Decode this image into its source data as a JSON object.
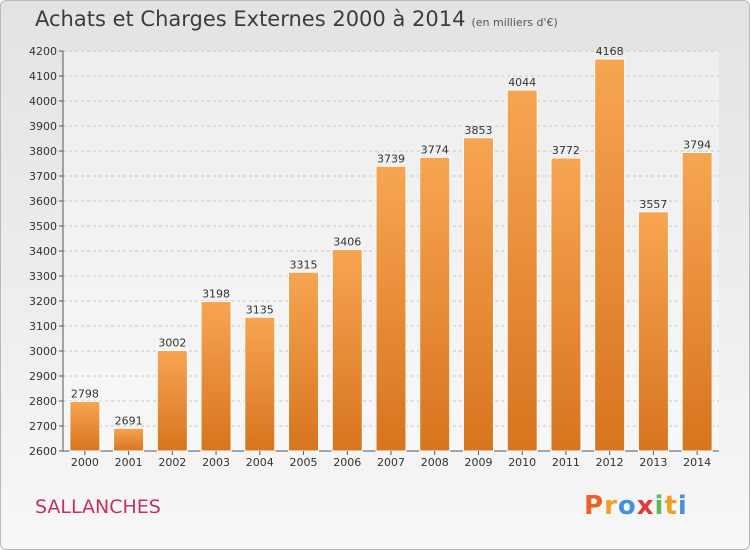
{
  "header": {
    "title": "Achats et Charges Externes 2000 à 2014",
    "subtitle": "(en milliers d'€)"
  },
  "footer": {
    "commune": "SALLANCHES",
    "logo": [
      "P",
      "r",
      "o",
      "x",
      "i",
      "t",
      "i"
    ]
  },
  "colors": {
    "bar_top": "#f7a552",
    "bar_bottom": "#d8741e",
    "grid": "#c8c8c8",
    "commune": "#c8305c",
    "logo": [
      "#e8622a",
      "#f0a024",
      "#4a90d9",
      "#e03a3a",
      "#5cb85c",
      "#f0a024",
      "#4a90d9"
    ]
  },
  "chart_data": {
    "type": "bar",
    "title": "Achats et Charges Externes 2000 à 2014",
    "categories": [
      "2000",
      "2001",
      "2002",
      "2003",
      "2004",
      "2005",
      "2006",
      "2007",
      "2008",
      "2009",
      "2010",
      "2011",
      "2012",
      "2013",
      "2014"
    ],
    "values": [
      2798,
      2691,
      3002,
      3198,
      3135,
      3315,
      3406,
      3739,
      3774,
      3853,
      4044,
      3772,
      4168,
      3557,
      3794
    ],
    "ylim": [
      2600,
      4200
    ],
    "yticks": [
      2600,
      2700,
      2800,
      2900,
      3000,
      3100,
      3200,
      3300,
      3400,
      3500,
      3600,
      3700,
      3800,
      3900,
      4000,
      4100,
      4200
    ],
    "grid": true,
    "xlabel": "",
    "ylabel": ""
  }
}
